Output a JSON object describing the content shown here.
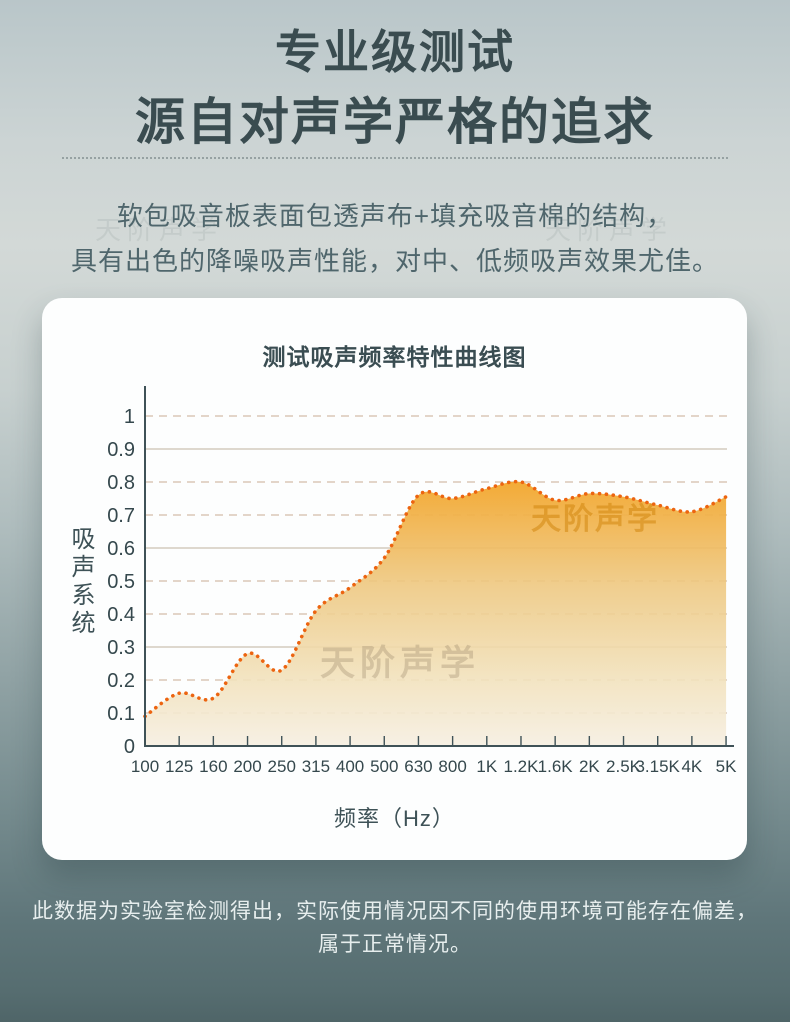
{
  "header": {
    "title_line1": "专业级测试",
    "title_line2": "源自对声学严格的追求",
    "description_line1": "软包吸音板表面包透声布+填充吸音棉的结构，",
    "description_line2": "具有出色的降噪吸声性能，对中、低频吸声效果尤佳。"
  },
  "chart_data": {
    "type": "line",
    "title": "测试吸声频率特性曲线图",
    "xlabel": "频率（Hz）",
    "ylabel": "吸声系统",
    "categories": [
      "100",
      "125",
      "160",
      "200",
      "250",
      "315",
      "400",
      "500",
      "630",
      "800",
      "1K",
      "1.2K",
      "1.6K",
      "2K",
      "2.5K",
      "3.15K",
      "4K",
      "5K"
    ],
    "values": [
      0.09,
      0.16,
      0.145,
      0.28,
      0.23,
      0.41,
      0.48,
      0.57,
      0.76,
      0.75,
      0.78,
      0.8,
      0.745,
      0.765,
      0.755,
      0.73,
      0.71,
      0.755
    ],
    "ylim": [
      0,
      1
    ],
    "yticks": [
      "0",
      "0.1",
      "0.2",
      "0.3",
      "0.4",
      "0.5",
      "0.6",
      "0.7",
      "0.8",
      "0.9",
      "1"
    ],
    "grid": {
      "solid_at": [
        0.3,
        0.6,
        0.9
      ],
      "dashed_at": [
        0.1,
        0.2,
        0.4,
        0.5,
        0.7,
        0.8,
        1.0
      ]
    },
    "legend": "none",
    "series_style": "dotted curve with gradient area fill",
    "line_color": "#ec6410",
    "fill_top_color": "#f3a72e",
    "fill_bottom_color": "#f6efe2",
    "watermark": "天阶声学"
  },
  "footer": {
    "note_line1": "此数据为实验室检测得出，实际使用情况因不同的使用环境可能存在偏差，",
    "note_line2": "属于正常情况。"
  },
  "watermark_text": "天阶声学",
  "colors": {
    "title_text": "#3a4c50",
    "body_text": "#4f666c",
    "footer_text": "#e7eeee",
    "curve_accent": "#ec6410",
    "axis": "#3f5257"
  }
}
